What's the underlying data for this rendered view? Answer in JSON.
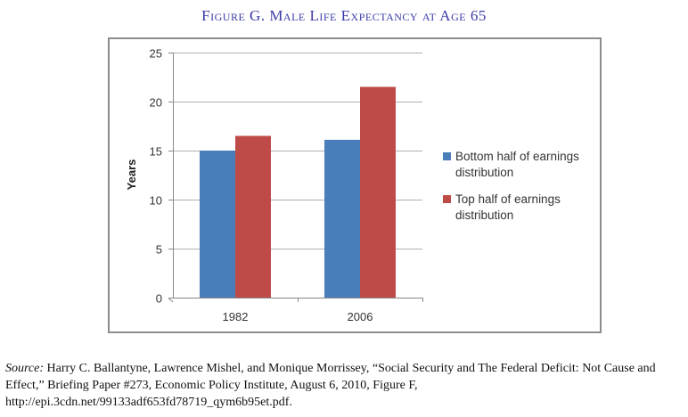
{
  "title": "Figure G. Male Life Expectancy at Age 65",
  "chart_data": {
    "type": "bar",
    "title": "Figure G. Male Life Expectancy at Age 65",
    "categories": [
      "1982",
      "2006"
    ],
    "series": [
      {
        "name": "Bottom half of earnings distribution",
        "color": "#4a7ebb",
        "values": [
          15.0,
          16.1
        ]
      },
      {
        "name": "Top half of earnings distribution",
        "color": "#be4b48",
        "values": [
          16.5,
          21.5
        ]
      }
    ],
    "xlabel": "",
    "ylabel": "Years",
    "ylim": [
      0,
      25
    ],
    "yticks": [
      0,
      5,
      10,
      15,
      20,
      25
    ],
    "grid": true,
    "legend_position": "right"
  },
  "legend": [
    {
      "label": "Bottom half of earnings distribution",
      "color": "#4a7ebb"
    },
    {
      "label": "Top half of earnings distribution",
      "color": "#be4b48"
    }
  ],
  "source": {
    "label": "Source:",
    "text": " Harry C. Ballantyne, Lawrence Mishel, and Monique Morrissey, “Social Security and The Federal Deficit: Not Cause and Effect,” Briefing Paper #273, Economic Policy Institute, August 6, 2010, Figure F, http://epi.3cdn.net/99133adf653fd78719_qym6b95et.pdf."
  }
}
